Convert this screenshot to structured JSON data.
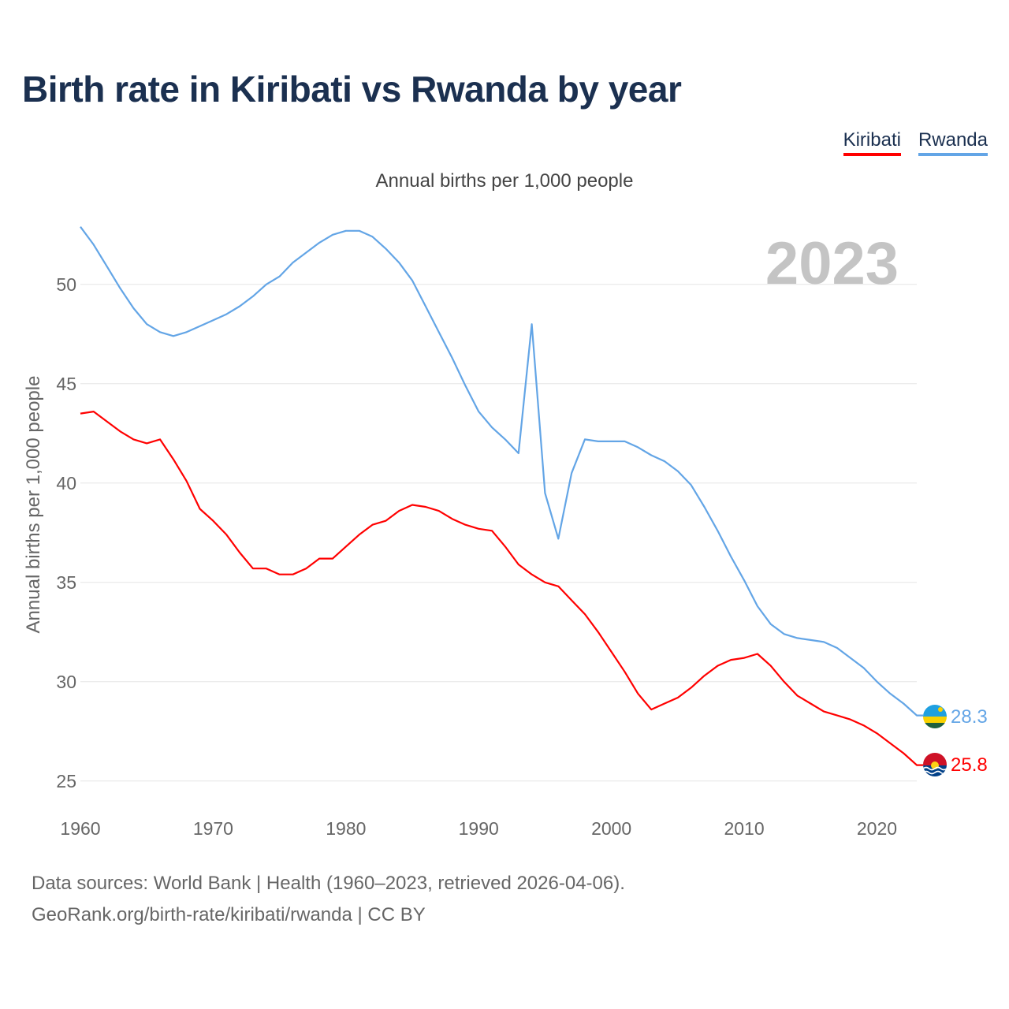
{
  "title": "Birth rate in Kiribati vs Rwanda by year",
  "subtitle": "Annual births per 1,000 people",
  "legend": [
    {
      "label": "Kiribati",
      "color": "#ff0000"
    },
    {
      "label": "Rwanda",
      "color": "#63a5e6"
    }
  ],
  "source_line1": "Data sources: World Bank | Health (1960–2023, retrieved 2026-04-06).",
  "source_line2": "GeoRank.org/birth-rate/kiribati/rwanda | CC BY",
  "chart_data": {
    "type": "line",
    "title": "Birth rate in Kiribati vs Rwanda by year",
    "subtitle": "Annual births per 1,000 people",
    "xlabel": "",
    "ylabel": "Annual births per 1,000 people",
    "year_label": "2023",
    "xlim": [
      1960,
      2023
    ],
    "ylim": [
      24,
      54
    ],
    "x_ticks": [
      1960,
      1970,
      1980,
      1990,
      2000,
      2010,
      2020
    ],
    "y_ticks": [
      25,
      30,
      35,
      40,
      45,
      50
    ],
    "grid": true,
    "x": [
      1960,
      1961,
      1962,
      1963,
      1964,
      1965,
      1966,
      1967,
      1968,
      1969,
      1970,
      1971,
      1972,
      1973,
      1974,
      1975,
      1976,
      1977,
      1978,
      1979,
      1980,
      1981,
      1982,
      1983,
      1984,
      1985,
      1986,
      1987,
      1988,
      1989,
      1990,
      1991,
      1992,
      1993,
      1994,
      1995,
      1996,
      1997,
      1998,
      1999,
      2000,
      2001,
      2002,
      2003,
      2004,
      2005,
      2006,
      2007,
      2008,
      2009,
      2010,
      2011,
      2012,
      2013,
      2014,
      2015,
      2016,
      2017,
      2018,
      2019,
      2020,
      2021,
      2022,
      2023
    ],
    "series": [
      {
        "name": "Kiribati",
        "color": "#ff0000",
        "end_label": "25.8",
        "values": [
          43.5,
          43.6,
          43.1,
          42.6,
          42.2,
          42.0,
          42.2,
          41.2,
          40.1,
          38.7,
          38.1,
          37.4,
          36.5,
          35.7,
          35.7,
          35.4,
          35.4,
          35.7,
          36.2,
          36.2,
          36.8,
          37.4,
          37.9,
          38.1,
          38.6,
          38.9,
          38.8,
          38.6,
          38.2,
          37.9,
          37.7,
          37.6,
          36.8,
          35.9,
          35.4,
          35.0,
          34.8,
          34.1,
          33.4,
          32.5,
          31.5,
          30.5,
          29.4,
          28.6,
          28.9,
          29.2,
          29.7,
          30.3,
          30.8,
          31.1,
          31.2,
          31.4,
          30.8,
          30.0,
          29.3,
          28.9,
          28.5,
          28.3,
          28.1,
          27.8,
          27.4,
          26.9,
          26.4,
          25.8
        ]
      },
      {
        "name": "Rwanda",
        "color": "#63a5e6",
        "end_label": "28.3",
        "values": [
          52.9,
          52.0,
          50.9,
          49.8,
          48.8,
          48.0,
          47.6,
          47.4,
          47.6,
          47.9,
          48.2,
          48.5,
          48.9,
          49.4,
          50.0,
          50.4,
          51.1,
          51.6,
          52.1,
          52.5,
          52.7,
          52.7,
          52.4,
          51.8,
          51.1,
          50.2,
          48.9,
          47.6,
          46.3,
          44.9,
          43.6,
          42.8,
          42.2,
          41.5,
          48.0,
          39.5,
          37.2,
          40.5,
          42.2,
          42.1,
          42.1,
          42.1,
          41.8,
          41.4,
          41.1,
          40.6,
          39.9,
          38.8,
          37.6,
          36.3,
          35.1,
          33.8,
          32.9,
          32.4,
          32.2,
          32.1,
          32.0,
          31.7,
          31.2,
          30.7,
          30.0,
          29.4,
          28.9,
          28.3
        ]
      }
    ]
  }
}
